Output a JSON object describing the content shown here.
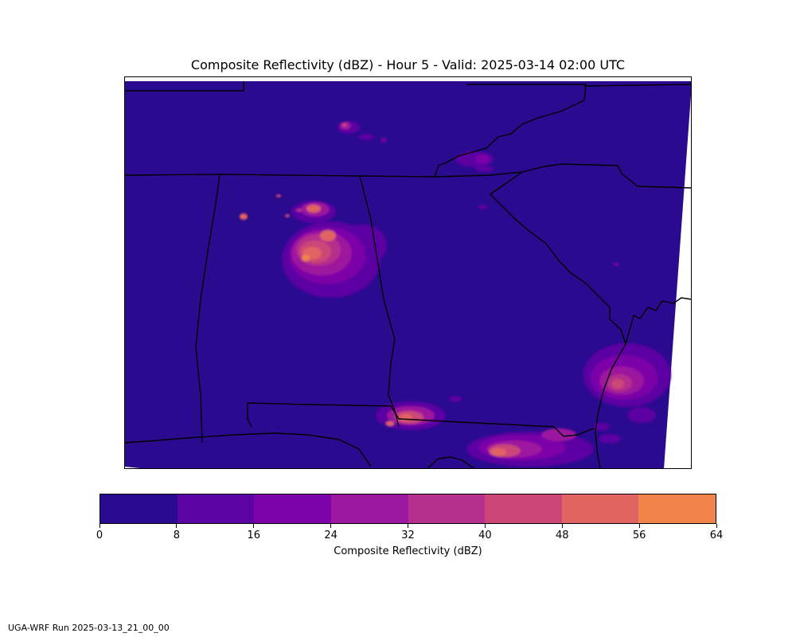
{
  "title": "Composite Reflectivity (dBZ) - Hour 5 - Valid: 2025-03-14 02:00 UTC",
  "colorbar": {
    "label": "Composite Reflectivity (dBZ)",
    "ticks": [
      "0",
      "8",
      "16",
      "24",
      "32",
      "40",
      "48",
      "56",
      "64"
    ],
    "colors": [
      "#2a0a8e",
      "#5b04a3",
      "#7b02a8",
      "#9c179e",
      "#b52f8c",
      "#cc4778",
      "#e16462",
      "#f2844b"
    ]
  },
  "map": {
    "background_color": "#2a0a8e",
    "region": "Southeastern United States (Alabama, Georgia, Florida Panhandle)",
    "storm_cells": [
      {
        "location": "north-central Alabama / Georgia border",
        "max_dbz": 48
      },
      {
        "location": "northern Georgia / Tennessee",
        "max_dbz": 24
      },
      {
        "location": "southeast Georgia coast",
        "max_dbz": 40
      },
      {
        "location": "southwest Georgia / Alabama border",
        "max_dbz": 40
      },
      {
        "location": "north Florida",
        "max_dbz": 48
      }
    ]
  },
  "footer": "UGA-WRF Run 2025-03-13_21_00_00"
}
